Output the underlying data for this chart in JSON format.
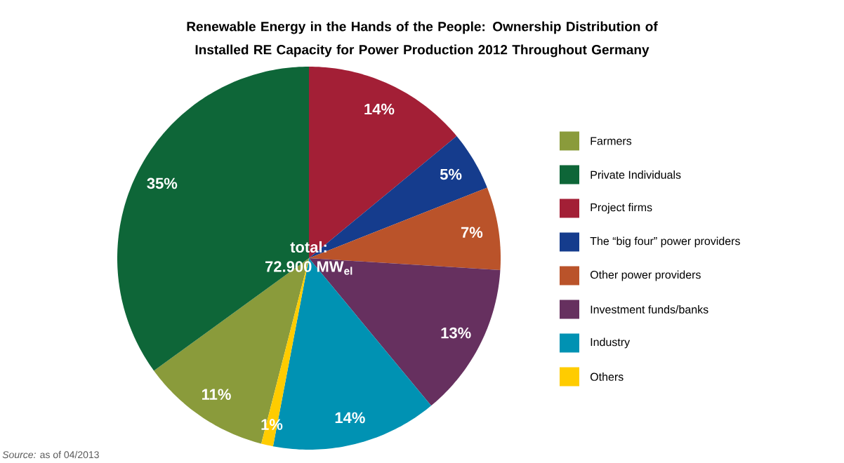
{
  "chart_data": {
    "type": "pie",
    "title": "Renewable Energy in the Hands of the People: Ownership Distribution of Installed RE Capacity for Power Production 2012 Throughout Germany",
    "categories": [
      "Farmers",
      "Private Individuals",
      "Project firms",
      "The “big four” power providers",
      "Other power providers",
      "Investment funds/banks",
      "Industry",
      "Others"
    ],
    "values": [
      11,
      35,
      14,
      5,
      7,
      13,
      14,
      1
    ],
    "colors": [
      "#8a9b3b",
      "#0e6638",
      "#a31f36",
      "#153c8d",
      "#ba532a",
      "#66305f",
      "#0092b3",
      "#ffcc00"
    ],
    "value_labels": [
      "11%",
      "35%",
      "14%",
      "5%",
      "7%",
      "13%",
      "14%",
      "1%"
    ],
    "legend": "right",
    "annotations": [
      "total:",
      "72.900 MW$_{el}$",
      "*Source:* as of 04/2013"
    ]
  }
}
